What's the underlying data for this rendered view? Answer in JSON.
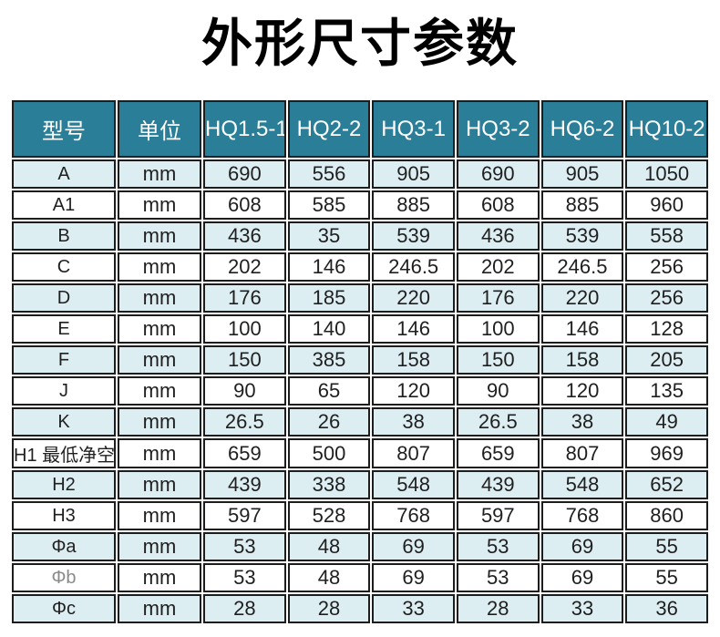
{
  "title": "外形尺寸参数",
  "colors": {
    "header_bg": "#2a7e98",
    "header_text": "#ffffff",
    "row_alt_bg": "#ddeef3",
    "row_bg": "#ffffff",
    "border": "#1d1d1d",
    "title_text": "#000000"
  },
  "table": {
    "headers": [
      "型号",
      "单位",
      "HQ1.5-1",
      "HQ2-2",
      "HQ3-1",
      "HQ3-2",
      "HQ6-2",
      "HQ10-2"
    ],
    "rows": [
      {
        "label": "A",
        "unit": "mm",
        "values": [
          "690",
          "556",
          "905",
          "690",
          "905",
          "1050"
        ]
      },
      {
        "label": "A1",
        "unit": "mm",
        "values": [
          "608",
          "585",
          "885",
          "608",
          "885",
          "960"
        ]
      },
      {
        "label": "B",
        "unit": "mm",
        "values": [
          "436",
          "35",
          "539",
          "436",
          "539",
          "558"
        ]
      },
      {
        "label": "C",
        "unit": "mm",
        "values": [
          "202",
          "146",
          "246.5",
          "202",
          "246.5",
          "256"
        ]
      },
      {
        "label": "D",
        "unit": "mm",
        "values": [
          "176",
          "185",
          "220",
          "176",
          "220",
          "256"
        ]
      },
      {
        "label": "E",
        "unit": "mm",
        "values": [
          "100",
          "140",
          "146",
          "100",
          "146",
          "128"
        ]
      },
      {
        "label": "F",
        "unit": "mm",
        "values": [
          "150",
          "385",
          "158",
          "150",
          "158",
          "205"
        ]
      },
      {
        "label": "J",
        "unit": "mm",
        "values": [
          "90",
          "65",
          "120",
          "90",
          "120",
          "135"
        ]
      },
      {
        "label": "K",
        "unit": "mm",
        "values": [
          "26.5",
          "26",
          "38",
          "26.5",
          "38",
          "49"
        ]
      },
      {
        "label": "H1 最低净空",
        "unit": "mm",
        "values": [
          "659",
          "500",
          "807",
          "659",
          "807",
          "969"
        ]
      },
      {
        "label": "H2",
        "unit": "mm",
        "values": [
          "439",
          "338",
          "548",
          "439",
          "548",
          "652"
        ]
      },
      {
        "label": "H3",
        "unit": "mm",
        "values": [
          "597",
          "528",
          "768",
          "597",
          "768",
          "860"
        ]
      },
      {
        "label": "Φa",
        "unit": "mm",
        "values": [
          "53",
          "48",
          "69",
          "53",
          "69",
          "55"
        ]
      },
      {
        "label": "Φb",
        "unit": "mm",
        "muted": true,
        "values": [
          "53",
          "48",
          "69",
          "53",
          "69",
          "55"
        ]
      },
      {
        "label": "Φc",
        "unit": "mm",
        "values": [
          "28",
          "28",
          "33",
          "28",
          "33",
          "36"
        ]
      }
    ]
  }
}
